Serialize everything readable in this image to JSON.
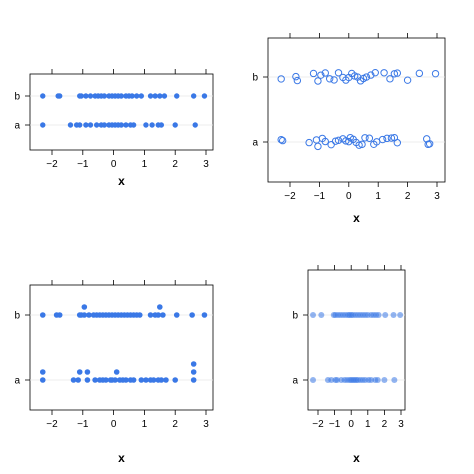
{
  "chart_data": [
    {
      "type": "scatter",
      "style": "stripplot-filled-stacked-small",
      "xlabel": "x",
      "ylabel": "",
      "categories": [
        "a",
        "b"
      ],
      "xticks": [
        -2,
        -1,
        0,
        1,
        2,
        3
      ],
      "xlim": [
        -2.5,
        3.2
      ],
      "grid": false,
      "point_color": "#3a78e6",
      "series": [
        {
          "name": "a",
          "x": [
            -2.3,
            -1.4,
            -1.2,
            -1.1,
            -0.9,
            -0.75,
            -0.55,
            -0.4,
            -0.3,
            -0.15,
            -0.05,
            0.05,
            0.15,
            0.25,
            0.4,
            0.55,
            0.65,
            1.05,
            1.25,
            1.45,
            1.55,
            2.0,
            2.65
          ]
        },
        {
          "name": "b",
          "x": [
            -2.3,
            -1.8,
            -1.75,
            -1.1,
            -1.05,
            -0.9,
            -0.75,
            -0.6,
            -0.5,
            -0.4,
            -0.3,
            -0.15,
            -0.05,
            0.05,
            0.15,
            0.25,
            0.4,
            0.5,
            0.6,
            0.75,
            0.9,
            1.2,
            1.35,
            1.5,
            1.65,
            2.05,
            2.6,
            2.95
          ]
        }
      ]
    },
    {
      "type": "scatter",
      "style": "stripplot-open-jitter",
      "xlabel": "x",
      "ylabel": "",
      "categories": [
        "a",
        "b"
      ],
      "xticks": [
        -2,
        -1,
        0,
        1,
        2,
        3
      ],
      "xlim": [
        -2.5,
        3.2
      ],
      "grid": false,
      "point_color": "#3a78e6",
      "series": [
        {
          "name": "a",
          "x": [
            -2.3,
            -2.25,
            -1.35,
            -1.1,
            -1.05,
            -0.9,
            -0.8,
            -0.6,
            -0.45,
            -0.35,
            -0.2,
            -0.1,
            0.0,
            0.05,
            0.15,
            0.25,
            0.35,
            0.45,
            0.55,
            0.7,
            0.85,
            0.95,
            1.15,
            1.3,
            1.45,
            1.55,
            1.65,
            2.65,
            2.7,
            2.75
          ]
        },
        {
          "name": "b",
          "x": [
            -2.3,
            -1.8,
            -1.75,
            -1.2,
            -1.05,
            -0.95,
            -0.8,
            -0.65,
            -0.5,
            -0.35,
            -0.2,
            -0.1,
            0.0,
            0.1,
            0.2,
            0.3,
            0.4,
            0.5,
            0.6,
            0.75,
            0.9,
            1.2,
            1.4,
            1.55,
            1.65,
            2.0,
            2.4,
            2.95
          ]
        }
      ]
    },
    {
      "type": "scatter",
      "style": "stripplot-filled-stacked-large",
      "xlabel": "x",
      "ylabel": "",
      "categories": [
        "a",
        "b"
      ],
      "xticks": [
        -2,
        -1,
        0,
        1,
        2,
        3
      ],
      "xlim": [
        -2.5,
        3.2
      ],
      "grid": false,
      "point_color": "#3a78e6",
      "series": [
        {
          "name": "a",
          "x": [
            -2.3,
            -2.3,
            -1.3,
            -1.15,
            -1.1,
            -0.85,
            -0.85,
            -0.6,
            -0.45,
            -0.35,
            -0.25,
            -0.1,
            -0.05,
            0.05,
            0.1,
            0.2,
            0.3,
            0.4,
            0.55,
            0.65,
            0.9,
            1.05,
            1.2,
            1.3,
            1.45,
            1.55,
            1.7,
            2.0,
            2.6,
            2.6,
            2.6
          ]
        },
        {
          "name": "b",
          "x": [
            -2.3,
            -1.85,
            -1.75,
            -1.1,
            -1.05,
            -0.95,
            -0.95,
            -0.8,
            -0.65,
            -0.55,
            -0.45,
            -0.35,
            -0.25,
            -0.15,
            -0.05,
            0.05,
            0.15,
            0.25,
            0.35,
            0.45,
            0.55,
            0.65,
            0.75,
            0.85,
            1.2,
            1.35,
            1.45,
            1.5,
            1.6,
            2.05,
            2.55,
            2.95
          ]
        }
      ]
    },
    {
      "type": "scatter",
      "style": "stripplot-translucent",
      "xlabel": "x",
      "ylabel": "",
      "categories": [
        "a",
        "b"
      ],
      "xticks": [
        -2,
        -1,
        0,
        1,
        2,
        3
      ],
      "xlim": [
        -2.5,
        3.2
      ],
      "grid": false,
      "point_color": "#3a78e6",
      "series": [
        {
          "name": "a",
          "x": [
            -2.3,
            -1.4,
            -1.2,
            -0.95,
            -0.85,
            -0.6,
            -0.4,
            -0.25,
            -0.1,
            0.0,
            0.1,
            0.2,
            0.3,
            0.4,
            0.55,
            0.7,
            0.85,
            1.05,
            1.2,
            1.45,
            1.6,
            2.0,
            2.6
          ]
        },
        {
          "name": "b",
          "x": [
            -2.3,
            -1.8,
            -1.05,
            -0.95,
            -0.8,
            -0.65,
            -0.5,
            -0.35,
            -0.2,
            -0.1,
            0.0,
            0.1,
            0.25,
            0.4,
            0.55,
            0.7,
            0.85,
            1.0,
            1.2,
            1.35,
            1.5,
            1.65,
            2.05,
            2.55,
            2.95
          ]
        }
      ]
    }
  ]
}
